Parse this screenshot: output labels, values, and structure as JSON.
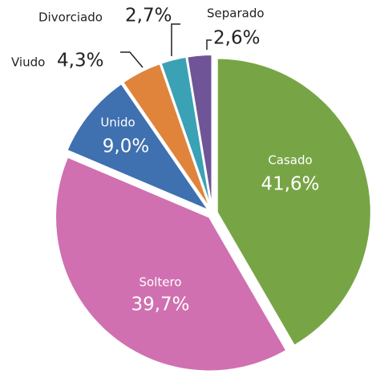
{
  "chart_data": {
    "type": "pie",
    "categories": [
      "Casado",
      "Soltero",
      "Unido",
      "Viudo",
      "Divorciado",
      "Separado"
    ],
    "values": [
      41.6,
      39.7,
      9.0,
      4.3,
      2.7,
      2.6
    ],
    "value_labels": [
      "41,6%",
      "39,7%",
      "9,0%",
      "4,3%",
      "2,7%",
      "2,6%"
    ],
    "colors": [
      "#77a545",
      "#d070b0",
      "#3f70b0",
      "#e0843c",
      "#3ba1b5",
      "#6f5597"
    ]
  }
}
